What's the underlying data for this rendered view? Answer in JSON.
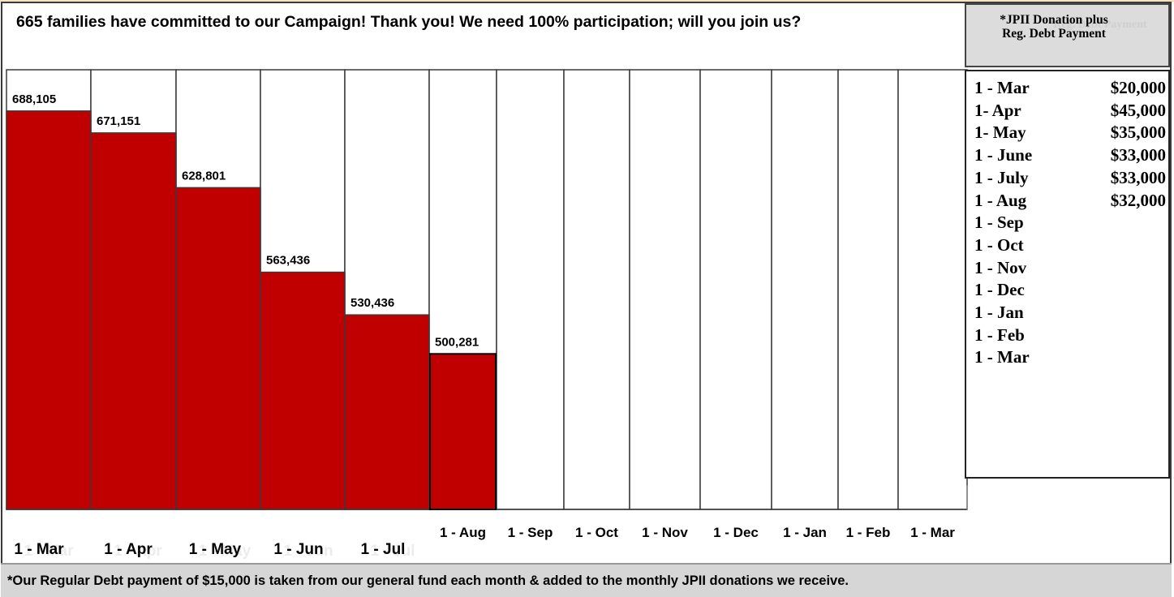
{
  "headline": "665 families have committed to our Campaign! Thank you! We need 100% participation; will you join us?",
  "sidebar": {
    "title_line1": "*JPII Donation plus",
    "title_line2": "Reg. Debt Payment",
    "shadow_text": "Reg. Debt Payment",
    "rows": [
      {
        "label": "1 - Mar",
        "amount": "$20,000"
      },
      {
        "label": "1-  Apr",
        "amount": "$45,000"
      },
      {
        "label": "1-  May",
        "amount": "$35,000"
      },
      {
        "label": "1 - June",
        "amount": "$33,000"
      },
      {
        "label": "1 - July",
        "amount": "$33,000"
      },
      {
        "label": "1 - Aug",
        "amount": "$32,000"
      },
      {
        "label": "1 - Sep",
        "amount": ""
      },
      {
        "label": "1 - Oct",
        "amount": ""
      },
      {
        "label": "1 - Nov",
        "amount": ""
      },
      {
        "label": "1 - Dec",
        "amount": ""
      },
      {
        "label": "1 - Jan",
        "amount": ""
      },
      {
        "label": "1 - Feb",
        "amount": ""
      },
      {
        "label": "1 - Mar",
        "amount": ""
      }
    ]
  },
  "footer": "*Our Regular Debt payment of $15,000 is taken from our general fund each month & added to the monthly JPII donations we receive.",
  "chart_data": {
    "type": "bar",
    "categories": [
      "1 - Mar",
      "1 - Apr",
      "1 - May",
      "1 - Jun",
      "1 - Jul",
      "1 - Aug",
      "1 - Sep",
      "1 - Oct",
      "1 - Nov",
      "1 - Dec",
      "1 - Jan",
      "1 - Feb",
      "1 - Mar"
    ],
    "values": [
      688105,
      671151,
      628801,
      563436,
      530436,
      500281,
      null,
      null,
      null,
      null,
      null,
      null,
      null
    ],
    "value_labels": [
      "688,105",
      "671,151",
      "628,801",
      "563,436",
      "530,436",
      "500,281",
      "",
      "",
      "",
      "",
      "",
      "",
      ""
    ],
    "ylim": [
      380000,
      720000
    ],
    "bar_color": "#c00000",
    "title": "",
    "xlabel": "",
    "ylabel": "",
    "grid": false
  }
}
